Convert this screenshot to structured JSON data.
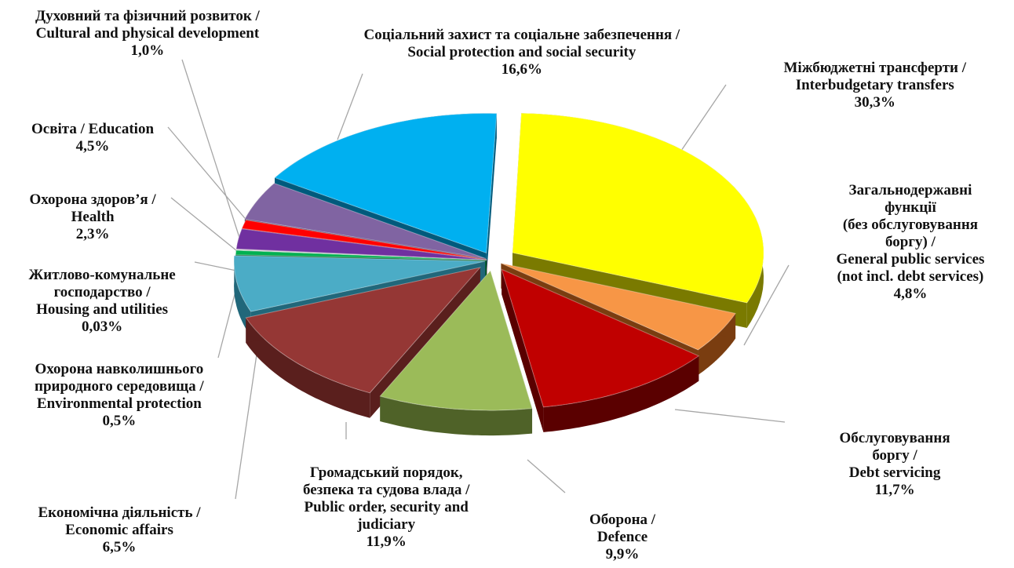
{
  "chart_data": {
    "type": "pie",
    "exploded": true,
    "style": "3d",
    "slices": [
      {
        "key": "transfers",
        "label_lines": [
          "Міжбюджетні трансферти /",
          "Interbudgetary transfers"
        ],
        "value": 30.3,
        "value_label": "30,3%",
        "color": "#ffff00",
        "side_color": "#7a7a00"
      },
      {
        "key": "general",
        "label_lines": [
          "Загальнодержавні",
          "функції",
          "(без обслуговування",
          "боргу) /",
          "General public services",
          "(not incl. debt services)"
        ],
        "value": 4.8,
        "value_label": "4,8%",
        "color": "#f79646",
        "side_color": "#7a3d10"
      },
      {
        "key": "debt",
        "label_lines": [
          "Обслуговування",
          "боргу /",
          "Debt servicing"
        ],
        "value": 11.7,
        "value_label": "11,7%",
        "color": "#c00000",
        "side_color": "#5a0000"
      },
      {
        "key": "defence",
        "label_lines": [
          "Оборона /",
          "Defence"
        ],
        "value": 9.9,
        "value_label": "9,9%",
        "color": "#9bbb59",
        "side_color": "#4f6228"
      },
      {
        "key": "order",
        "label_lines": [
          "Громадський порядок,",
          "безпека та судова влада /",
          "Public order, security and",
          "judiciary"
        ],
        "value": 11.9,
        "value_label": "11,9%",
        "color": "#953735",
        "side_color": "#5a1f1d"
      },
      {
        "key": "economic",
        "label_lines": [
          "Економічна діяльність /",
          "Economic affairs"
        ],
        "value": 6.5,
        "value_label": "6,5%",
        "color": "#4bacc6",
        "side_color": "#21677a"
      },
      {
        "key": "environment",
        "label_lines": [
          "Охорона навколишнього",
          "природного середовища /",
          "Environmental protection"
        ],
        "value": 0.5,
        "value_label": "0,5%",
        "color": "#00b050",
        "side_color": "#005a28"
      },
      {
        "key": "housing",
        "label_lines": [
          "Житлово-комунальне",
          "господарство /",
          "Housing and utilities"
        ],
        "value": 0.03,
        "value_label": "0,03%",
        "color": "#d9d9d9",
        "side_color": "#808080"
      },
      {
        "key": "health",
        "label_lines": [
          "Охорона здоров’я /",
          "Health"
        ],
        "value": 2.3,
        "value_label": "2,3%",
        "color": "#7030a0",
        "side_color": "#3a1555"
      },
      {
        "key": "culture",
        "label_lines": [
          "Духовний та фізичний розвиток /",
          "Cultural and physical development"
        ],
        "value": 1.0,
        "value_label": "1,0%",
        "color": "#ff0000",
        "side_color": "#8a0000"
      },
      {
        "key": "education",
        "label_lines": [
          "Освіта / Education"
        ],
        "value": 4.5,
        "value_label": "4,5%",
        "color": "#8064a2",
        "side_color": "#403152"
      },
      {
        "key": "social",
        "label_lines": [
          "Соціальний захист та соціальне забезпечення /",
          "Social protection and social security"
        ],
        "value": 16.6,
        "value_label": "16,6%",
        "color": "#00b0f0",
        "side_color": "#005a7c"
      }
    ]
  }
}
